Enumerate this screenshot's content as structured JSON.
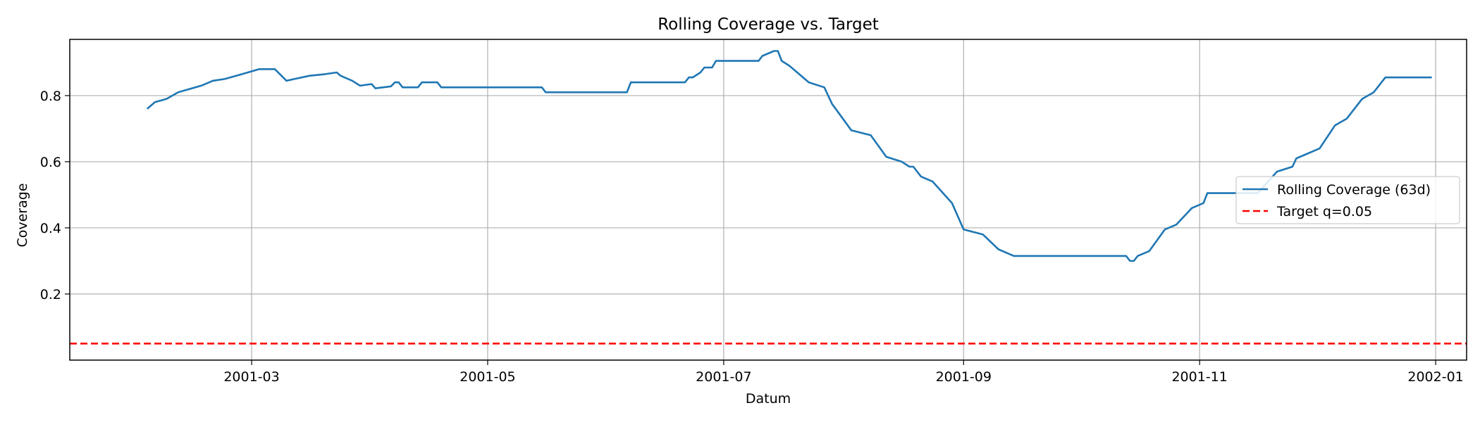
{
  "chart_data": {
    "type": "line",
    "title": "Rolling Coverage vs. Target",
    "xlabel": "Datum",
    "ylabel": "Coverage",
    "xlim": [
      "2001-01-13",
      "2002-01-09"
    ],
    "ylim": [
      0.0,
      0.97
    ],
    "x_ticks": [
      "2001-03-01",
      "2001-05-01",
      "2001-07-01",
      "2001-09-01",
      "2001-11-01",
      "2002-01-01"
    ],
    "x_tick_labels": [
      "2001-03",
      "2001-05",
      "2001-07",
      "2001-09",
      "2001-11",
      "2002-01"
    ],
    "y_ticks": [
      0.2,
      0.4,
      0.6,
      0.8
    ],
    "y_tick_labels": [
      "0.2",
      "0.4",
      "0.6",
      "0.8"
    ],
    "grid": true,
    "legend_position": "center-right",
    "series": [
      {
        "name": "Rolling Coverage (63d)",
        "color": "#1f77b4",
        "style": "solid",
        "x": [
          "2001-02-02",
          "2001-02-04",
          "2001-02-07",
          "2001-02-10",
          "2001-02-13",
          "2001-02-16",
          "2001-02-19",
          "2001-02-22",
          "2001-02-25",
          "2001-02-28",
          "2001-03-03",
          "2001-03-07",
          "2001-03-10",
          "2001-03-12",
          "2001-03-16",
          "2001-03-20",
          "2001-03-23",
          "2001-03-24",
          "2001-03-27",
          "2001-03-29",
          "2001-04-01",
          "2001-04-02",
          "2001-04-06",
          "2001-04-07",
          "2001-04-08",
          "2001-04-09",
          "2001-04-13",
          "2001-04-14",
          "2001-04-18",
          "2001-04-19",
          "2001-04-25",
          "2001-05-10",
          "2001-05-15",
          "2001-05-16",
          "2001-06-05",
          "2001-06-06",
          "2001-06-07",
          "2001-06-21",
          "2001-06-22",
          "2001-06-23",
          "2001-06-25",
          "2001-06-26",
          "2001-06-28",
          "2001-06-29",
          "2001-07-10",
          "2001-07-11",
          "2001-07-14",
          "2001-07-15",
          "2001-07-16",
          "2001-07-18",
          "2001-07-20",
          "2001-07-23",
          "2001-07-27",
          "2001-07-29",
          "2001-08-03",
          "2001-08-08",
          "2001-08-12",
          "2001-08-16",
          "2001-08-18",
          "2001-08-19",
          "2001-08-21",
          "2001-08-24",
          "2001-08-29",
          "2001-09-01",
          "2001-09-06",
          "2001-09-10",
          "2001-09-14",
          "2001-10-13",
          "2001-10-14",
          "2001-10-15",
          "2001-10-16",
          "2001-10-19",
          "2001-10-23",
          "2001-10-26",
          "2001-10-28",
          "2001-10-30",
          "2001-11-02",
          "2001-11-03",
          "2001-11-16",
          "2001-11-21",
          "2001-11-25",
          "2001-11-26",
          "2001-11-28",
          "2001-12-02",
          "2001-12-06",
          "2001-12-09",
          "2001-12-13",
          "2001-12-16",
          "2001-12-19",
          "2001-12-31"
        ],
        "y": [
          0.76,
          0.78,
          0.79,
          0.81,
          0.82,
          0.83,
          0.845,
          0.85,
          0.86,
          0.87,
          0.88,
          0.88,
          0.845,
          0.85,
          0.86,
          0.865,
          0.87,
          0.86,
          0.845,
          0.83,
          0.835,
          0.822,
          0.828,
          0.84,
          0.84,
          0.825,
          0.825,
          0.84,
          0.84,
          0.825,
          0.825,
          0.825,
          0.825,
          0.81,
          0.81,
          0.81,
          0.84,
          0.84,
          0.855,
          0.855,
          0.87,
          0.885,
          0.885,
          0.905,
          0.905,
          0.92,
          0.935,
          0.935,
          0.905,
          0.89,
          0.87,
          0.84,
          0.825,
          0.775,
          0.695,
          0.68,
          0.615,
          0.6,
          0.585,
          0.585,
          0.555,
          0.54,
          0.475,
          0.395,
          0.38,
          0.335,
          0.315,
          0.315,
          0.3,
          0.3,
          0.315,
          0.33,
          0.395,
          0.41,
          0.435,
          0.46,
          0.475,
          0.505,
          0.505,
          0.57,
          0.585,
          0.61,
          0.62,
          0.64,
          0.71,
          0.73,
          0.79,
          0.81,
          0.855,
          0.855
        ]
      },
      {
        "name": "Target q=0.05",
        "color": "#ff0000",
        "style": "dashed",
        "y_constant": 0.05
      }
    ]
  }
}
